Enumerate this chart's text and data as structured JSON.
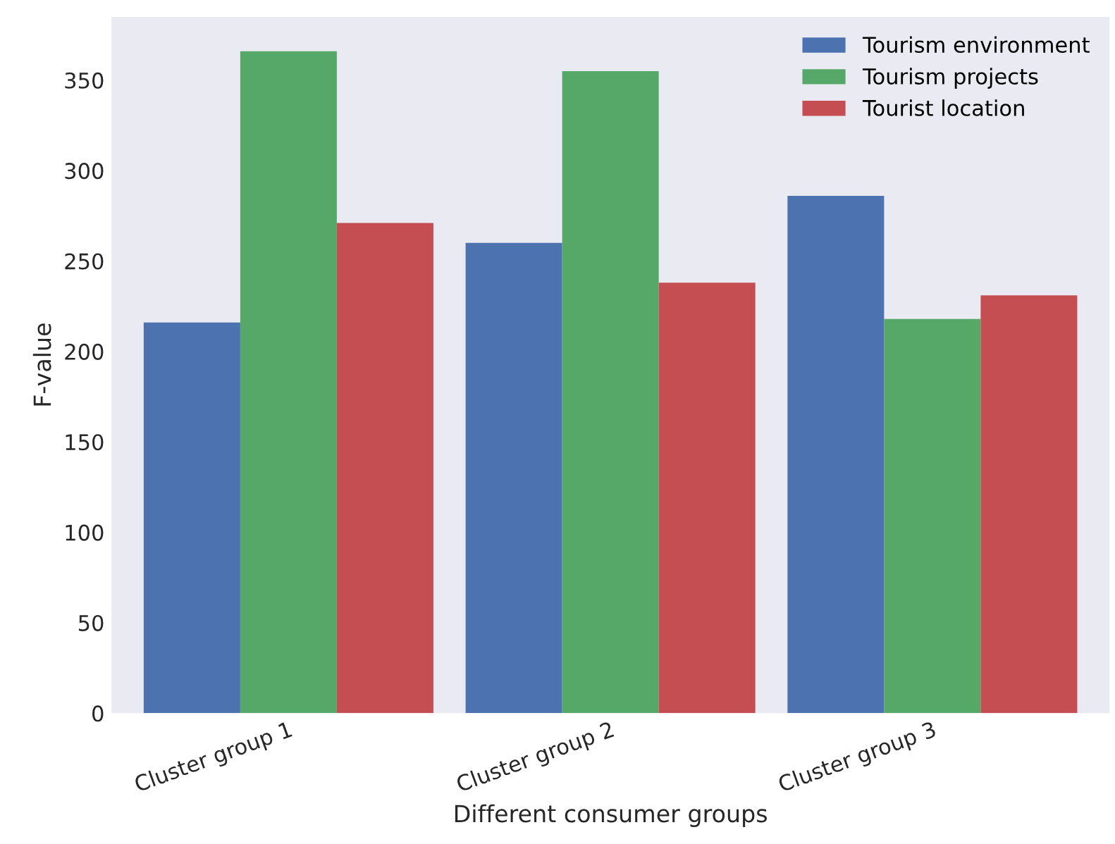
{
  "chart_data": {
    "type": "bar",
    "xlabel": "Different consumer groups",
    "ylabel": "F-value",
    "categories": [
      "Cluster group 1",
      "Cluster group 2",
      "Cluster group 3"
    ],
    "series": [
      {
        "name": "Tourism environment",
        "color": "#4c72b0",
        "values": [
          216,
          260,
          286
        ]
      },
      {
        "name": "Tourism projects",
        "color": "#55a868",
        "values": [
          366,
          355,
          218
        ]
      },
      {
        "name": "Tourist location",
        "color": "#c44e52",
        "values": [
          271,
          238,
          231
        ]
      }
    ],
    "ylim": [
      0,
      385
    ],
    "yticks": [
      0,
      50,
      100,
      150,
      200,
      250,
      300,
      350
    ],
    "grid": false,
    "legend": "top right"
  }
}
